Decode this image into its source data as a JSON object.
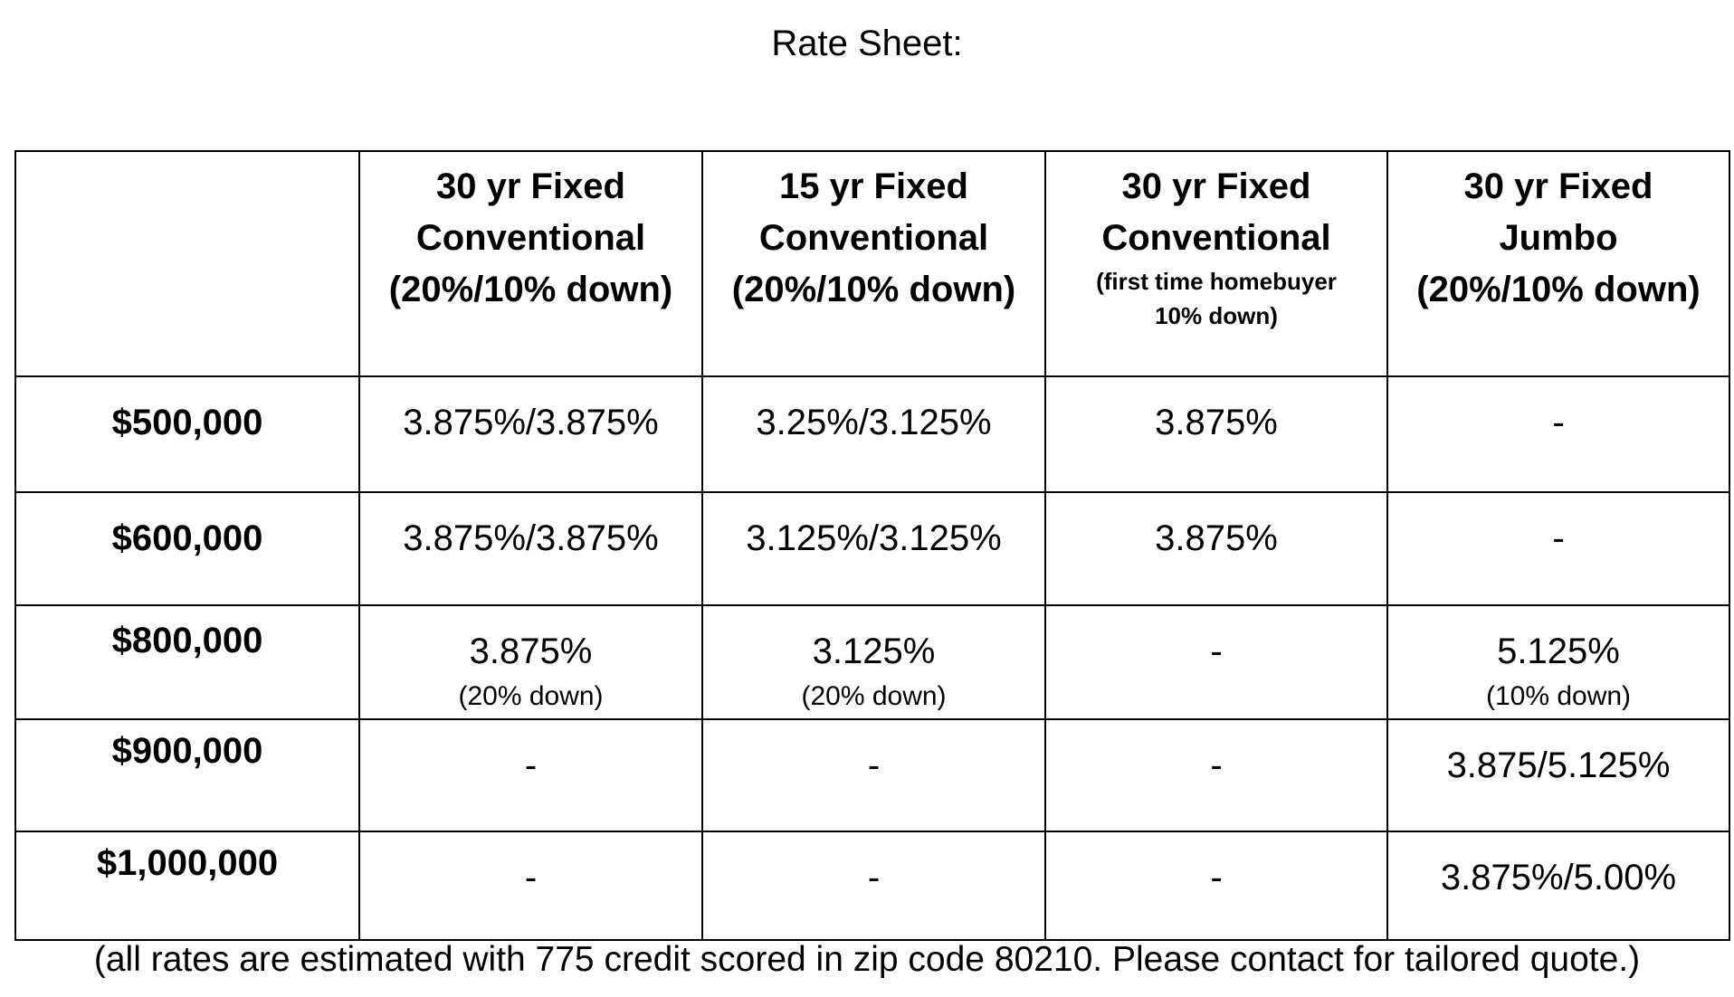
{
  "title": "Rate Sheet:",
  "columns": [
    {
      "lines": [],
      "note_lines": []
    },
    {
      "lines": [
        "30 yr Fixed",
        "Conventional",
        "(20%/10% down)"
      ],
      "note_lines": []
    },
    {
      "lines": [
        "15 yr Fixed",
        "Conventional",
        "(20%/10% down)"
      ],
      "note_lines": []
    },
    {
      "lines": [
        "30 yr Fixed",
        "Conventional"
      ],
      "note_lines": [
        "(first time homebuyer",
        "10% down)"
      ]
    },
    {
      "lines": [
        "30 yr Fixed",
        "Jumbo",
        "(20%/10% down)"
      ],
      "note_lines": []
    }
  ],
  "rows": [
    {
      "label": "$500,000",
      "cells": [
        {
          "rate": "3.875%/3.875%",
          "note": ""
        },
        {
          "rate": "3.25%/3.125%",
          "note": ""
        },
        {
          "rate": "3.875%",
          "note": ""
        },
        {
          "rate": "-",
          "note": ""
        }
      ]
    },
    {
      "label": "$600,000",
      "cells": [
        {
          "rate": "3.875%/3.875%",
          "note": ""
        },
        {
          "rate": "3.125%/3.125%",
          "note": ""
        },
        {
          "rate": "3.875%",
          "note": ""
        },
        {
          "rate": "-",
          "note": ""
        }
      ]
    },
    {
      "label": "$800,000",
      "cells": [
        {
          "rate": "3.875%",
          "note": "(20% down)"
        },
        {
          "rate": "3.125%",
          "note": "(20% down)"
        },
        {
          "rate": "-",
          "note": ""
        },
        {
          "rate": "5.125%",
          "note": "(10% down)"
        }
      ]
    },
    {
      "label": "$900,000",
      "cells": [
        {
          "rate": "-",
          "note": ""
        },
        {
          "rate": "-",
          "note": ""
        },
        {
          "rate": "-",
          "note": ""
        },
        {
          "rate": "3.875/5.125%",
          "note": ""
        }
      ]
    },
    {
      "label": "$1,000,000",
      "cells": [
        {
          "rate": "-",
          "note": ""
        },
        {
          "rate": "-",
          "note": ""
        },
        {
          "rate": "-",
          "note": ""
        },
        {
          "rate": "3.875%/5.00%",
          "note": ""
        }
      ]
    }
  ],
  "footnote": "(all rates are estimated with 775 credit scored in zip code 80210. Please contact for tailored quote.)"
}
